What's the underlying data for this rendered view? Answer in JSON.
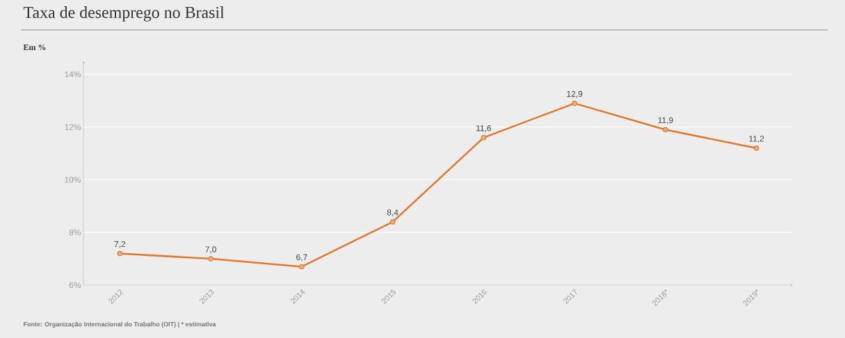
{
  "chart_data": {
    "type": "line",
    "title": "Taxa de desemprego no Brasil",
    "ylabel": "Em %",
    "categories": [
      "2012",
      "2013",
      "2014",
      "2015",
      "2016",
      "2017",
      "2018*",
      "2019*"
    ],
    "values": [
      7.2,
      7.0,
      6.7,
      8.4,
      11.6,
      12.9,
      11.9,
      11.2
    ],
    "value_labels": [
      "7,2",
      "7,0",
      "6,7",
      "8,4",
      "11,6",
      "12,9",
      "11,9",
      "11,2"
    ],
    "color": "#e0782c",
    "marker": "circle",
    "line_style": "solid",
    "grid": "y",
    "ylim": [
      6,
      14.5
    ],
    "yticks": [
      {
        "value": 6,
        "label": "6%"
      },
      {
        "value": 8,
        "label": "8%"
      },
      {
        "value": 10,
        "label": "10%"
      },
      {
        "value": 12,
        "label": "12%"
      },
      {
        "value": 14,
        "label": "14%"
      }
    ],
    "annotations": [
      "Fonte: Organização Internacional do Trabalho (OIT) | * estimativa"
    ]
  }
}
